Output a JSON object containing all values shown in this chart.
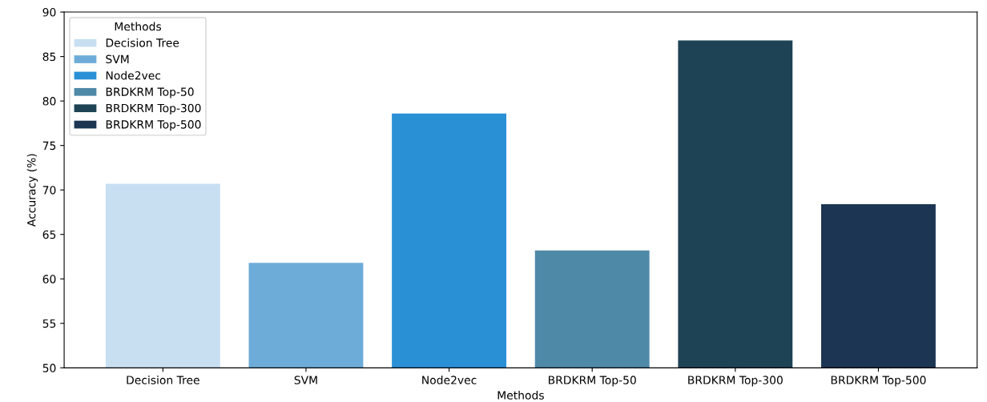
{
  "chart_data": {
    "type": "bar",
    "xlabel": "Methods",
    "ylabel": "Accuracy (%)",
    "legend_title": "Methods",
    "categories": [
      "Decision Tree",
      "SVM",
      "Node2vec",
      "BRDKRM Top-50",
      "BRDKRM Top-300",
      "BRDKRM Top-500"
    ],
    "series": [
      {
        "name": "Decision Tree",
        "color": "#c8dff2",
        "values": [
          70.7,
          null,
          null,
          null,
          null,
          null
        ]
      },
      {
        "name": "SVM",
        "color": "#6dacd8",
        "values": [
          null,
          61.8,
          null,
          null,
          null,
          null
        ]
      },
      {
        "name": "Node2vec",
        "color": "#2a90d6",
        "values": [
          null,
          null,
          78.6,
          null,
          null,
          null
        ]
      },
      {
        "name": "BRDKRM Top-50",
        "color": "#4f89a8",
        "values": [
          null,
          null,
          null,
          63.2,
          null,
          null
        ]
      },
      {
        "name": "BRDKRM Top-300",
        "color": "#1e4355",
        "values": [
          null,
          null,
          null,
          null,
          86.8,
          null
        ]
      },
      {
        "name": "BRDKRM Top-500",
        "color": "#1b3552",
        "values": [
          null,
          null,
          null,
          null,
          null,
          68.4
        ]
      }
    ],
    "ylim": [
      50,
      90
    ],
    "yticks": [
      50,
      55,
      60,
      65,
      70,
      75,
      80,
      85,
      90
    ],
    "legend": "top left"
  }
}
